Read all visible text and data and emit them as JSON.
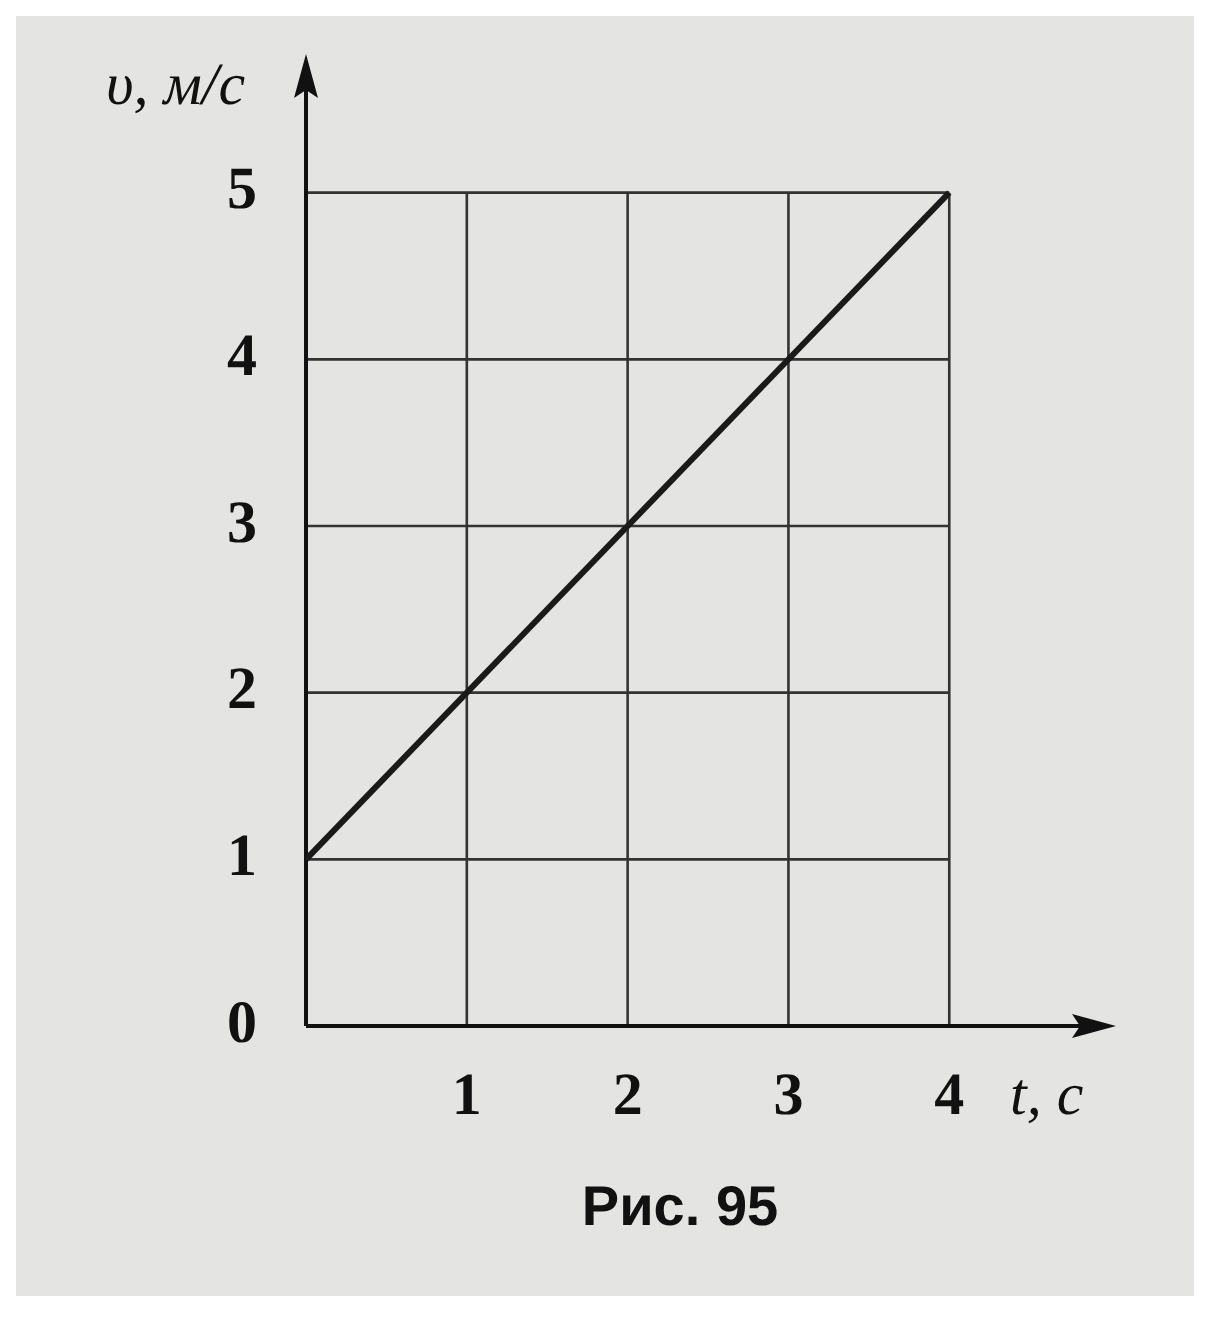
{
  "chart_data": {
    "type": "line",
    "xlabel": "t, с",
    "ylabel": "υ, м/с",
    "annotations": [
      "Рис. 95"
    ],
    "x": [
      0,
      4
    ],
    "series": [
      {
        "color": "#1a1a1a",
        "values": [
          1,
          5
        ]
      }
    ],
    "xlim": [
      0,
      4.9
    ],
    "ylim": [
      0,
      5.7
    ],
    "xticks": [
      {
        "value": 0,
        "label": null
      },
      1,
      2,
      3,
      4
    ],
    "yticks": [
      0,
      1,
      2,
      3,
      4,
      5
    ],
    "grid": true,
    "legend": false,
    "marker": "none",
    "line_style": "solid"
  }
}
